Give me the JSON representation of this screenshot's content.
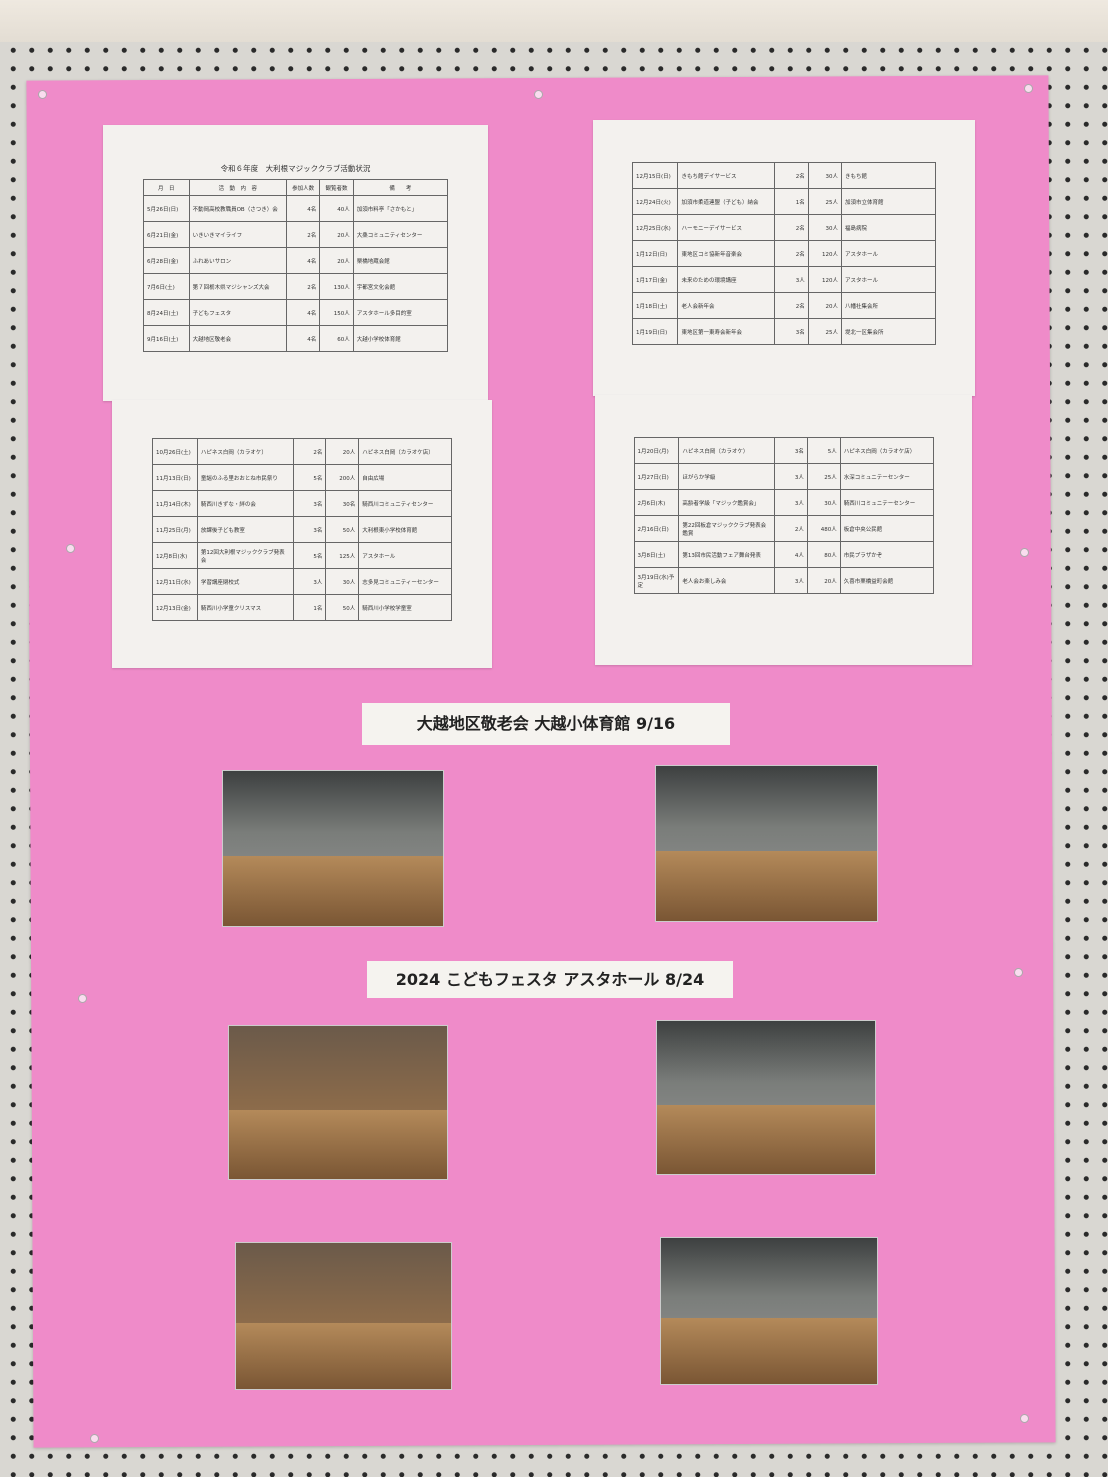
{
  "schedule_title": "令和６年度　大利根マジッククラブ活動状況",
  "headers": [
    "月　日",
    "活　動　内　容",
    "参加人数",
    "観覧者数",
    "備　　考"
  ],
  "tables": {
    "top_left": [
      [
        "5月26日(日)",
        "不動岡高校教職員OB（さつき）会",
        "4名",
        "40人",
        "加須市料亭「さかもと」"
      ],
      [
        "6月21日(金)",
        "いきいきマイライフ",
        "2名",
        "20人",
        "大桑コミュニティセンター"
      ],
      [
        "6月28日(金)",
        "ふれあいサロン",
        "4名",
        "20人",
        "栗橋地蔵会館"
      ],
      [
        "7月6日(土)",
        "第７回栃木県マジシャンズ大会",
        "2名",
        "130人",
        "宇都宮文化会館"
      ],
      [
        "8月24日(土)",
        "子どもフェスタ",
        "4名",
        "150人",
        "アスタホール多目的室"
      ],
      [
        "9月16日(土)",
        "大越地区敬老会",
        "4名",
        "60人",
        "大越小学校体育館"
      ]
    ],
    "bottom_left": [
      [
        "10月26日(土)",
        "ハピネス白岡（カラオケ）",
        "2名",
        "20人",
        "ハピネス白岡（カラオケ店）"
      ],
      [
        "11月13日(日)",
        "童謡のふる里おおとね市民祭り",
        "5名",
        "200人",
        "自由広場"
      ],
      [
        "11月14日(木)",
        "騎西川きずな・絆の会",
        "3名",
        "30名",
        "騎西川コミュニティセンター"
      ],
      [
        "11月25日(月)",
        "放課後子ども教室",
        "3名",
        "50人",
        "大利根東小学校体育館"
      ],
      [
        "12月8日(水)",
        "第12回大利根マジッククラブ発表会",
        "5名",
        "125人",
        "アスタホール"
      ],
      [
        "12月11日(水)",
        "学習講座閉校式",
        "3人",
        "30人",
        "志多見コミュニティーセンター"
      ],
      [
        "12月13日(金)",
        "騎西川小学童クリスマス",
        "1名",
        "50人",
        "騎西川小学校学童室"
      ]
    ],
    "top_right": [
      [
        "12月15日(日)",
        "きもち館デイサービス",
        "2名",
        "30人",
        "きもち館"
      ],
      [
        "12月24日(火)",
        "加須市柔道連盟（子ども）納会",
        "1名",
        "25人",
        "加須市立体育館"
      ],
      [
        "12月25日(水)",
        "ハーモニーデイサービス",
        "2名",
        "30人",
        "福島病院"
      ],
      [
        "1月12日(日)",
        "東地区コミ協新年音楽会",
        "2名",
        "120人",
        "アスタホール"
      ],
      [
        "1月17日(金)",
        "未来のための環境講座",
        "3人",
        "120人",
        "アスタホール"
      ],
      [
        "1月18日(土)",
        "老人会新年会",
        "2名",
        "20人",
        "八幡社集会所"
      ],
      [
        "1月19日(日)",
        "東地区第一東寿会新年会",
        "3名",
        "25人",
        "堤北一区集会所"
      ]
    ],
    "bottom_right": [
      [
        "1月20日(月)",
        "ハピネス白岡（カラオケ）",
        "3名",
        "5人",
        "ハピネス白岡（カラオケ店）"
      ],
      [
        "1月27日(日)",
        "ほがらか学級",
        "3人",
        "25人",
        "水深コミュニテーセンター"
      ],
      [
        "2月6日(木)",
        "高齢者学級「マジック鑑賞会」",
        "3人",
        "30人",
        "騎西川コミュニテーセンター"
      ],
      [
        "2月16日(日)",
        "第22回板倉マジッククラブ発表会鑑賞",
        "2人",
        "480人",
        "板倉中央公民館"
      ],
      [
        "3月8日(土)",
        "第13回市民活動フェア舞台発表",
        "4人",
        "80人",
        "市民プラザかぞ"
      ],
      [
        "3月19日(水)予定",
        "老人会お楽しみ会",
        "3人",
        "20人",
        "久喜市栗橋益町会館"
      ]
    ]
  },
  "banners": {
    "keirokai": "大越地区敬老会 大越小体育館 9/16",
    "festa": "2024 こどもフェスタ アスタホール 8/24"
  }
}
